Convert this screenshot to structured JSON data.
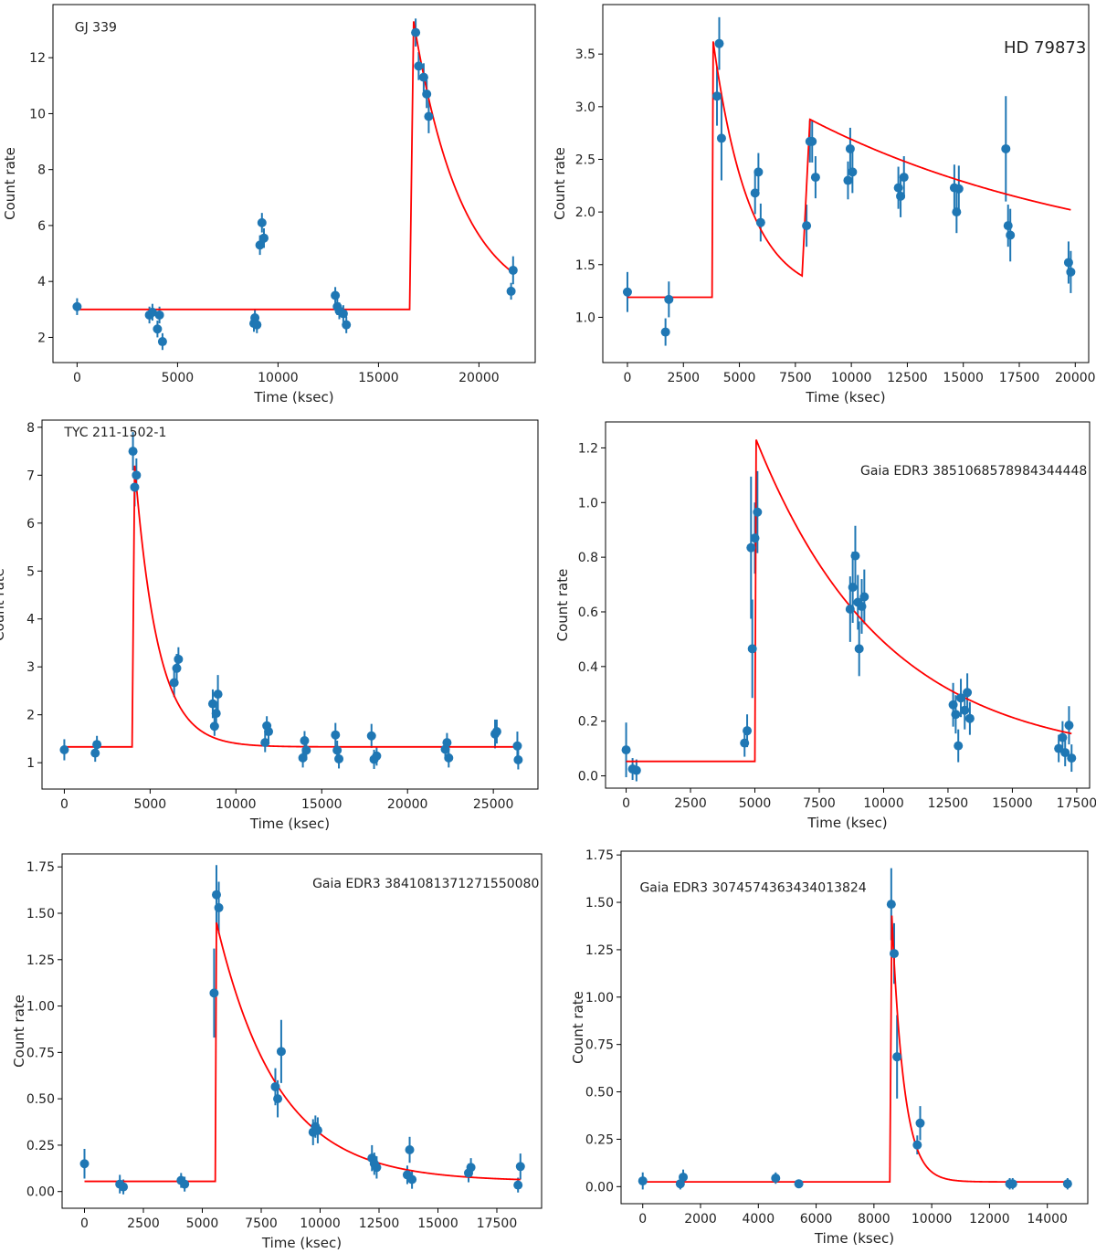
{
  "figure": {
    "red_color": "#ff0000",
    "point_color": "#1f77b4",
    "axis_color": "#000000"
  },
  "chart_data": [
    {
      "type": "scatter",
      "title": "GJ 339",
      "xlabel": "Time (ksec)",
      "ylabel": "Count rate",
      "xlim": [
        -1200,
        22800
      ],
      "ylim": [
        1.1,
        13.9
      ],
      "xticks": [
        0,
        5000,
        10000,
        15000,
        20000
      ],
      "yticks": [
        2,
        4,
        6,
        8,
        10,
        12
      ],
      "xtick_labels": [
        "0",
        "5000",
        "10000",
        "15000",
        "20000"
      ],
      "ytick_labels": [
        "2",
        "4",
        "6",
        "8",
        "10",
        "12"
      ],
      "points": [
        {
          "x": 0,
          "y": 3.1,
          "err": 0.3
        },
        {
          "x": 3600,
          "y": 2.8,
          "err": 0.3
        },
        {
          "x": 3750,
          "y": 2.9,
          "err": 0.3
        },
        {
          "x": 4000,
          "y": 2.3,
          "err": 0.3
        },
        {
          "x": 4100,
          "y": 2.8,
          "err": 0.3
        },
        {
          "x": 4250,
          "y": 1.85,
          "err": 0.3
        },
        {
          "x": 8800,
          "y": 2.5,
          "err": 0.3
        },
        {
          "x": 8850,
          "y": 2.7,
          "err": 0.3
        },
        {
          "x": 8950,
          "y": 2.45,
          "err": 0.3
        },
        {
          "x": 9100,
          "y": 5.3,
          "err": 0.35
        },
        {
          "x": 9200,
          "y": 6.1,
          "err": 0.35
        },
        {
          "x": 9300,
          "y": 5.55,
          "err": 0.35
        },
        {
          "x": 12850,
          "y": 3.5,
          "err": 0.3
        },
        {
          "x": 12950,
          "y": 3.1,
          "err": 0.3
        },
        {
          "x": 13050,
          "y": 2.95,
          "err": 0.3
        },
        {
          "x": 13250,
          "y": 2.85,
          "err": 0.3
        },
        {
          "x": 13400,
          "y": 2.45,
          "err": 0.3
        },
        {
          "x": 16850,
          "y": 12.9,
          "err": 0.5
        },
        {
          "x": 17000,
          "y": 11.7,
          "err": 0.5
        },
        {
          "x": 17250,
          "y": 11.3,
          "err": 0.5
        },
        {
          "x": 17400,
          "y": 10.7,
          "err": 0.5
        },
        {
          "x": 17500,
          "y": 9.9,
          "err": 0.6
        },
        {
          "x": 21600,
          "y": 3.65,
          "err": 0.3
        },
        {
          "x": 21700,
          "y": 4.4,
          "err": 0.5
        }
      ],
      "model": {
        "base": 3.0,
        "t_start": 16550,
        "t_peak": 16750,
        "peak": 13.3,
        "tau": 2400,
        "t_end": 21700
      }
    },
    {
      "type": "scatter",
      "title": "HD 79873",
      "xlabel": "Time (ksec)",
      "ylabel": "Count rate",
      "xlim": [
        -1100,
        20600
      ],
      "ylim": [
        0.57,
        3.97
      ],
      "xticks": [
        0,
        2500,
        5000,
        7500,
        10000,
        12500,
        15000,
        17500,
        20000
      ],
      "yticks": [
        1.0,
        1.5,
        2.0,
        2.5,
        3.0,
        3.5
      ],
      "xtick_labels": [
        "0",
        "2500",
        "5000",
        "7500",
        "10000",
        "12500",
        "15000",
        "17500",
        "20000"
      ],
      "ytick_labels": [
        "1.0",
        "1.5",
        "2.0",
        "2.5",
        "3.0",
        "3.5"
      ],
      "points": [
        {
          "x": 0,
          "y": 1.24,
          "err": 0.19
        },
        {
          "x": 1700,
          "y": 0.86,
          "err": 0.13
        },
        {
          "x": 1850,
          "y": 1.17,
          "err": 0.17
        },
        {
          "x": 4000,
          "y": 3.1,
          "err": 0.28
        },
        {
          "x": 4100,
          "y": 3.6,
          "err": 0.25
        },
        {
          "x": 4200,
          "y": 2.7,
          "err": 0.4
        },
        {
          "x": 5700,
          "y": 2.18,
          "err": 0.2
        },
        {
          "x": 5850,
          "y": 2.38,
          "err": 0.18
        },
        {
          "x": 5950,
          "y": 1.9,
          "err": 0.18
        },
        {
          "x": 8000,
          "y": 1.87,
          "err": 0.2
        },
        {
          "x": 8150,
          "y": 2.67,
          "err": 0.2
        },
        {
          "x": 8250,
          "y": 2.67,
          "err": 0.2
        },
        {
          "x": 8400,
          "y": 2.33,
          "err": 0.2
        },
        {
          "x": 9850,
          "y": 2.3,
          "err": 0.18
        },
        {
          "x": 9950,
          "y": 2.6,
          "err": 0.2
        },
        {
          "x": 10050,
          "y": 2.38,
          "err": 0.2
        },
        {
          "x": 12100,
          "y": 2.23,
          "err": 0.2
        },
        {
          "x": 12200,
          "y": 2.15,
          "err": 0.2
        },
        {
          "x": 12350,
          "y": 2.33,
          "err": 0.2
        },
        {
          "x": 14600,
          "y": 2.23,
          "err": 0.22
        },
        {
          "x": 14700,
          "y": 2.0,
          "err": 0.2
        },
        {
          "x": 14800,
          "y": 2.22,
          "err": 0.22
        },
        {
          "x": 16900,
          "y": 2.6,
          "err": 0.5
        },
        {
          "x": 17000,
          "y": 1.87,
          "err": 0.2
        },
        {
          "x": 17100,
          "y": 1.78,
          "err": 0.25
        },
        {
          "x": 19700,
          "y": 1.52,
          "err": 0.2
        },
        {
          "x": 19800,
          "y": 1.43,
          "err": 0.2
        }
      ],
      "model": {
        "base": 1.19,
        "t_start": 3780,
        "t_peak": 3830,
        "peak": 3.62,
        "tau": 1600,
        "t_start2": 7800,
        "t_peak2": 8150,
        "peak2": 2.88,
        "tau2": 13500,
        "t_end": 19800
      }
    },
    {
      "type": "scatter",
      "title": "TYC 211-1502-1",
      "xlabel": "Time (ksec)",
      "ylabel": "Count rate",
      "xlim": [
        -1300,
        27600
      ],
      "ylim": [
        0.45,
        8.15
      ],
      "xticks": [
        0,
        5000,
        10000,
        15000,
        20000,
        25000
      ],
      "yticks": [
        1,
        2,
        3,
        4,
        5,
        6,
        7,
        8
      ],
      "xtick_labels": [
        "0",
        "5000",
        "10000",
        "15000",
        "20000",
        "25000"
      ],
      "ytick_labels": [
        "1",
        "2",
        "3",
        "4",
        "5",
        "6",
        "7",
        "8"
      ],
      "points": [
        {
          "x": 0,
          "y": 1.27,
          "err": 0.22
        },
        {
          "x": 1800,
          "y": 1.2,
          "err": 0.18
        },
        {
          "x": 1900,
          "y": 1.38,
          "err": 0.18
        },
        {
          "x": 4000,
          "y": 7.5,
          "err": 0.4
        },
        {
          "x": 4100,
          "y": 6.75,
          "err": 0.4
        },
        {
          "x": 4200,
          "y": 7.0,
          "err": 0.35
        },
        {
          "x": 6400,
          "y": 2.67,
          "err": 0.3
        },
        {
          "x": 6550,
          "y": 2.97,
          "err": 0.3
        },
        {
          "x": 6650,
          "y": 3.16,
          "err": 0.25
        },
        {
          "x": 8650,
          "y": 2.23,
          "err": 0.3
        },
        {
          "x": 8750,
          "y": 1.76,
          "err": 0.2
        },
        {
          "x": 8850,
          "y": 2.03,
          "err": 0.25
        },
        {
          "x": 8950,
          "y": 2.43,
          "err": 0.4
        },
        {
          "x": 11700,
          "y": 1.42,
          "err": 0.2
        },
        {
          "x": 11800,
          "y": 1.77,
          "err": 0.2
        },
        {
          "x": 11900,
          "y": 1.65,
          "err": 0.2
        },
        {
          "x": 13900,
          "y": 1.1,
          "err": 0.2
        },
        {
          "x": 14000,
          "y": 1.46,
          "err": 0.2
        },
        {
          "x": 14100,
          "y": 1.26,
          "err": 0.2
        },
        {
          "x": 15800,
          "y": 1.58,
          "err": 0.25
        },
        {
          "x": 15900,
          "y": 1.26,
          "err": 0.2
        },
        {
          "x": 16000,
          "y": 1.08,
          "err": 0.2
        },
        {
          "x": 17900,
          "y": 1.56,
          "err": 0.25
        },
        {
          "x": 18050,
          "y": 1.07,
          "err": 0.2
        },
        {
          "x": 18200,
          "y": 1.14,
          "err": 0.2
        },
        {
          "x": 22200,
          "y": 1.28,
          "err": 0.2
        },
        {
          "x": 22300,
          "y": 1.42,
          "err": 0.2
        },
        {
          "x": 22400,
          "y": 1.1,
          "err": 0.2
        },
        {
          "x": 25100,
          "y": 1.6,
          "err": 0.3
        },
        {
          "x": 25200,
          "y": 1.65,
          "err": 0.25
        },
        {
          "x": 26400,
          "y": 1.35,
          "err": 0.3
        },
        {
          "x": 26450,
          "y": 1.06,
          "err": 0.2
        }
      ],
      "model": {
        "base": 1.33,
        "t_start": 3950,
        "t_peak": 4100,
        "peak": 7.2,
        "tau": 1350,
        "t_end": 26450
      }
    },
    {
      "type": "scatter",
      "title": "Gaia EDR3 3851068578984344448",
      "xlabel": "Time (ksec)",
      "ylabel": "Count rate",
      "xlim": [
        -800,
        18000
      ],
      "ylim": [
        -0.045,
        1.295
      ],
      "xticks": [
        0,
        2500,
        5000,
        7500,
        10000,
        12500,
        15000,
        17500
      ],
      "yticks": [
        0.0,
        0.2,
        0.4,
        0.6,
        0.8,
        1.0,
        1.2
      ],
      "xtick_labels": [
        "0",
        "2500",
        "5000",
        "7500",
        "10000",
        "12500",
        "15000",
        "17500"
      ],
      "ytick_labels": [
        "0.0",
        "0.2",
        "0.4",
        "0.6",
        "0.8",
        "1.0",
        "1.2"
      ],
      "points": [
        {
          "x": 0,
          "y": 0.095,
          "err": 0.1
        },
        {
          "x": 250,
          "y": 0.025,
          "err": 0.04
        },
        {
          "x": 400,
          "y": 0.02,
          "err": 0.04
        },
        {
          "x": 4600,
          "y": 0.12,
          "err": 0.05
        },
        {
          "x": 4700,
          "y": 0.165,
          "err": 0.06
        },
        {
          "x": 4850,
          "y": 0.835,
          "err": 0.26
        },
        {
          "x": 4900,
          "y": 0.465,
          "err": 0.18
        },
        {
          "x": 5000,
          "y": 0.87,
          "err": 0.13
        },
        {
          "x": 5100,
          "y": 0.965,
          "err": 0.15
        },
        {
          "x": 8700,
          "y": 0.61,
          "err": 0.12
        },
        {
          "x": 8800,
          "y": 0.69,
          "err": 0.13
        },
        {
          "x": 8900,
          "y": 0.805,
          "err": 0.11
        },
        {
          "x": 9000,
          "y": 0.635,
          "err": 0.1
        },
        {
          "x": 9050,
          "y": 0.465,
          "err": 0.1
        },
        {
          "x": 9150,
          "y": 0.62,
          "err": 0.1
        },
        {
          "x": 9250,
          "y": 0.655,
          "err": 0.1
        },
        {
          "x": 12700,
          "y": 0.26,
          "err": 0.08
        },
        {
          "x": 12800,
          "y": 0.225,
          "err": 0.07
        },
        {
          "x": 12900,
          "y": 0.11,
          "err": 0.06
        },
        {
          "x": 13000,
          "y": 0.285,
          "err": 0.07
        },
        {
          "x": 13150,
          "y": 0.24,
          "err": 0.07
        },
        {
          "x": 13250,
          "y": 0.305,
          "err": 0.07
        },
        {
          "x": 13350,
          "y": 0.21,
          "err": 0.06
        },
        {
          "x": 16800,
          "y": 0.1,
          "err": 0.05
        },
        {
          "x": 16950,
          "y": 0.14,
          "err": 0.06
        },
        {
          "x": 17050,
          "y": 0.085,
          "err": 0.05
        },
        {
          "x": 17200,
          "y": 0.185,
          "err": 0.07
        },
        {
          "x": 17300,
          "y": 0.065,
          "err": 0.05
        }
      ],
      "model": {
        "base": 0.053,
        "t_start": 5000,
        "t_peak": 5050,
        "peak": 1.23,
        "tau": 5000,
        "t_end": 17300
      }
    },
    {
      "type": "scatter",
      "title": "Gaia EDR3 3841081371271550080",
      "xlabel": "Time (ksec)",
      "ylabel": "Count rate",
      "xlim": [
        -950,
        19400
      ],
      "ylim": [
        -0.09,
        1.82
      ],
      "xticks": [
        0,
        2500,
        5000,
        7500,
        10000,
        12500,
        15000,
        17500
      ],
      "yticks": [
        0.0,
        0.25,
        0.5,
        0.75,
        1.0,
        1.25,
        1.5,
        1.75
      ],
      "xtick_labels": [
        "0",
        "2500",
        "5000",
        "7500",
        "10000",
        "12500",
        "15000",
        "17500"
      ],
      "ytick_labels": [
        "0.00",
        "0.25",
        "0.50",
        "0.75",
        "1.00",
        "1.25",
        "1.50",
        "1.75"
      ],
      "points": [
        {
          "x": 0,
          "y": 0.15,
          "err": 0.08
        },
        {
          "x": 1500,
          "y": 0.04,
          "err": 0.05
        },
        {
          "x": 1650,
          "y": 0.025,
          "err": 0.04
        },
        {
          "x": 4100,
          "y": 0.06,
          "err": 0.04
        },
        {
          "x": 4250,
          "y": 0.04,
          "err": 0.04
        },
        {
          "x": 5500,
          "y": 1.07,
          "err": 0.24
        },
        {
          "x": 5600,
          "y": 1.6,
          "err": 0.16
        },
        {
          "x": 5700,
          "y": 1.53,
          "err": 0.14
        },
        {
          "x": 8100,
          "y": 0.565,
          "err": 0.1
        },
        {
          "x": 8200,
          "y": 0.5,
          "err": 0.1
        },
        {
          "x": 8350,
          "y": 0.755,
          "err": 0.17
        },
        {
          "x": 9700,
          "y": 0.32,
          "err": 0.07
        },
        {
          "x": 9800,
          "y": 0.35,
          "err": 0.06
        },
        {
          "x": 9900,
          "y": 0.33,
          "err": 0.07
        },
        {
          "x": 12200,
          "y": 0.18,
          "err": 0.07
        },
        {
          "x": 12300,
          "y": 0.15,
          "err": 0.06
        },
        {
          "x": 12400,
          "y": 0.13,
          "err": 0.06
        },
        {
          "x": 13700,
          "y": 0.09,
          "err": 0.05
        },
        {
          "x": 13800,
          "y": 0.225,
          "err": 0.07
        },
        {
          "x": 13900,
          "y": 0.065,
          "err": 0.05
        },
        {
          "x": 16300,
          "y": 0.1,
          "err": 0.05
        },
        {
          "x": 16400,
          "y": 0.13,
          "err": 0.05
        },
        {
          "x": 18400,
          "y": 0.035,
          "err": 0.04
        },
        {
          "x": 18500,
          "y": 0.135,
          "err": 0.07
        }
      ],
      "model": {
        "base": 0.055,
        "t_start": 5550,
        "t_peak": 5600,
        "peak": 1.45,
        "tau": 2600,
        "t_end": 18500
      }
    },
    {
      "type": "scatter",
      "title": "Gaia EDR3 3074574363434013824",
      "xlabel": "Time (ksec)",
      "ylabel": "Count rate",
      "xlim": [
        -750,
        15400
      ],
      "ylim": [
        -0.09,
        1.77
      ],
      "xticks": [
        0,
        2000,
        4000,
        6000,
        8000,
        10000,
        12000,
        14000
      ],
      "yticks": [
        0.0,
        0.25,
        0.5,
        0.75,
        1.0,
        1.25,
        1.5,
        1.75
      ],
      "xtick_labels": [
        "0",
        "2000",
        "4000",
        "6000",
        "8000",
        "10000",
        "12000",
        "14000"
      ],
      "ytick_labels": [
        "0.00",
        "0.25",
        "0.50",
        "0.75",
        "1.00",
        "1.25",
        "1.50",
        "1.75"
      ],
      "points": [
        {
          "x": 0,
          "y": 0.03,
          "err": 0.045
        },
        {
          "x": 1300,
          "y": 0.015,
          "err": 0.03
        },
        {
          "x": 1400,
          "y": 0.05,
          "err": 0.04
        },
        {
          "x": 4600,
          "y": 0.045,
          "err": 0.03
        },
        {
          "x": 5400,
          "y": 0.015,
          "err": 0.02
        },
        {
          "x": 8600,
          "y": 1.49,
          "err": 0.19
        },
        {
          "x": 8700,
          "y": 1.23,
          "err": 0.16
        },
        {
          "x": 8800,
          "y": 0.685,
          "err": 0.22
        },
        {
          "x": 9500,
          "y": 0.22,
          "err": 0.05
        },
        {
          "x": 9600,
          "y": 0.335,
          "err": 0.09
        },
        {
          "x": 12700,
          "y": 0.015,
          "err": 0.03
        },
        {
          "x": 12800,
          "y": 0.015,
          "err": 0.03
        },
        {
          "x": 14700,
          "y": 0.015,
          "err": 0.03
        }
      ],
      "model": {
        "base": 0.025,
        "t_start": 8550,
        "t_peak": 8620,
        "peak": 1.43,
        "tau": 420,
        "t_end": 14700
      }
    }
  ]
}
